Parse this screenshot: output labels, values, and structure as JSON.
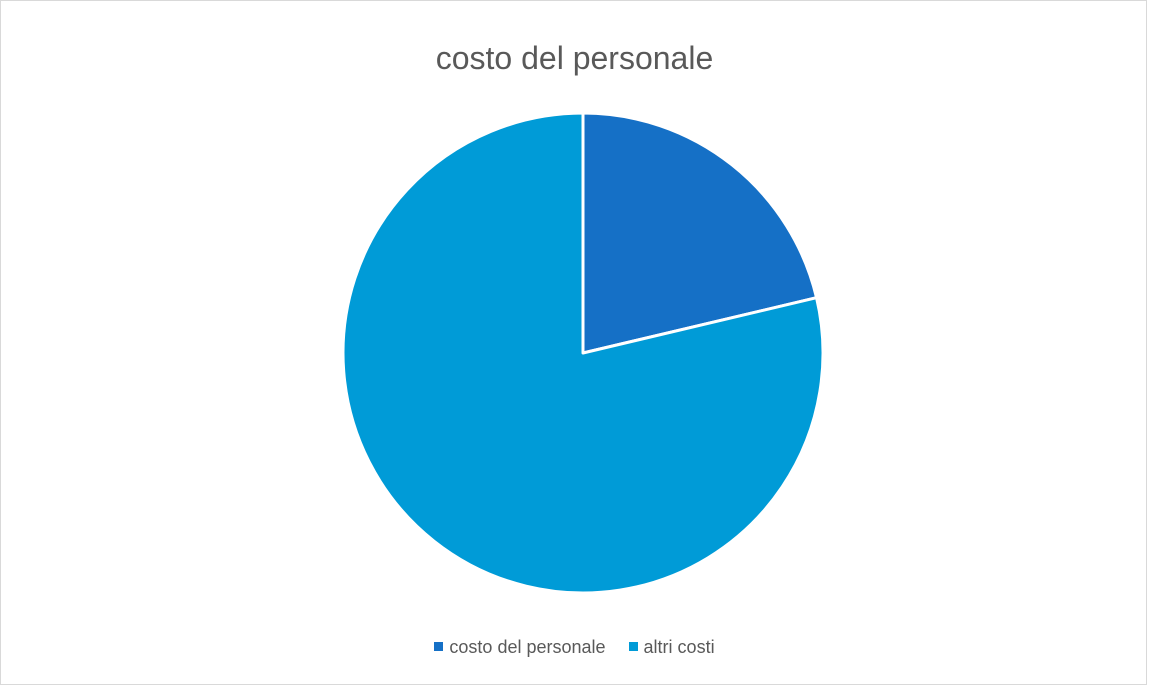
{
  "chart_data": {
    "type": "pie",
    "title": "costo del personale",
    "categories": [
      "costo del personale",
      "altri costi"
    ],
    "values": [
      21.3,
      78.7
    ],
    "colors": [
      "#1570c6",
      "#009bd7"
    ],
    "legend_position": "bottom"
  }
}
